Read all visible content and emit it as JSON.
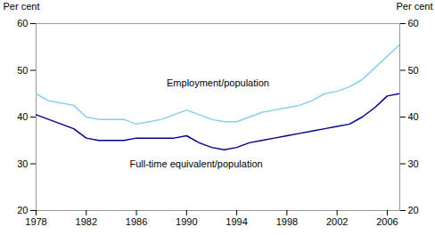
{
  "chart_data": {
    "type": "line",
    "x": [
      1978,
      1979,
      1980,
      1981,
      1982,
      1983,
      1984,
      1985,
      1986,
      1987,
      1988,
      1989,
      1990,
      1991,
      1992,
      1993,
      1994,
      1995,
      1996,
      1997,
      1998,
      1999,
      2000,
      2001,
      2002,
      2003,
      2004,
      2005,
      2006,
      2007
    ],
    "series": [
      {
        "color": "#87CEEB",
        "values": [
          45.0,
          43.5,
          43.0,
          42.5,
          40.0,
          39.5,
          39.5,
          39.5,
          38.5,
          39.0,
          39.5,
          40.5,
          41.5,
          40.5,
          39.5,
          39.0,
          39.0,
          40.0,
          41.0,
          41.5,
          42.0,
          42.5,
          43.5,
          45.0,
          45.5,
          46.5,
          48.0,
          50.5,
          53.0,
          55.5
        ]
      },
      {
        "color": "#00008B",
        "values": [
          40.5,
          39.5,
          38.5,
          37.5,
          35.5,
          35.0,
          35.0,
          35.0,
          35.5,
          35.5,
          35.5,
          35.5,
          36.0,
          34.5,
          33.5,
          33.0,
          33.5,
          34.5,
          35.0,
          35.5,
          36.0,
          36.5,
          37.0,
          37.5,
          38.0,
          38.5,
          40.0,
          42.0,
          44.5,
          45.0
        ]
      }
    ],
    "annotations": [
      "Employment/population",
      "Full-time equivalent/population"
    ],
    "ylabel": "Per cent",
    "y2label": "Per cent",
    "xlim": [
      1978,
      2007
    ],
    "xticks": [
      1978,
      1982,
      1986,
      1990,
      1994,
      1998,
      2002,
      2006
    ],
    "ylim": [
      20,
      60
    ],
    "yticks": [
      20,
      30,
      40,
      50,
      60
    ],
    "y2lim": [
      20,
      60
    ],
    "y2ticks": [
      20,
      30,
      40,
      50,
      60
    ],
    "grid": false
  }
}
